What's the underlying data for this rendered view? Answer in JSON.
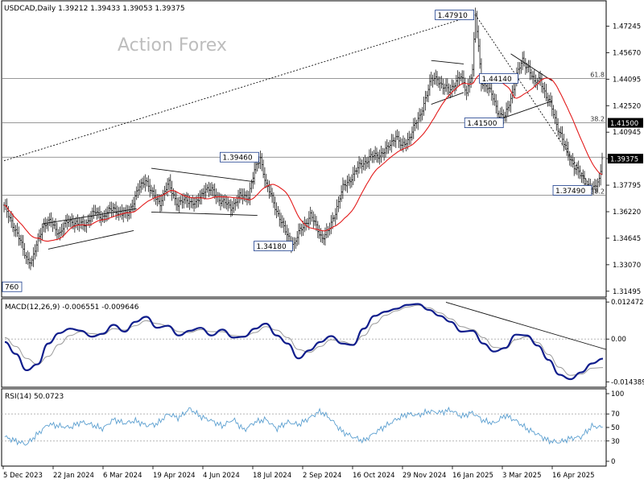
{
  "header": {
    "symbol_line": "USDCAD,Daily  1.39212 1.39433 1.39053 1.39375",
    "watermark": "Action Forex"
  },
  "colors": {
    "bars": "#1a1a1a",
    "sma": "#e31b1b",
    "macd": "#0f1d8c",
    "signal": "#9a9a9a",
    "rsi": "#5b9fd0",
    "grid": "#d0d0d0",
    "annotation": "#333333",
    "last_price_bg": "#000000"
  },
  "chart_data": [
    {
      "type": "ohlc",
      "panel": "price",
      "title": "USDCAD,Daily  1.39212 1.39433 1.39053 1.39375",
      "ylim": [
        1.3115,
        1.4875
      ],
      "y_ticks": [
        "1.47245",
        "1.45670",
        "1.44095",
        "1.42520",
        "1.40945",
        "1.39375",
        "1.37795",
        "1.36220",
        "1.34645",
        "1.33070",
        "1.31495"
      ],
      "x_ticks": [
        "5 Dec 2023",
        "22 Jan 2024",
        "6 Mar 2024",
        "19 Apr 2024",
        "4 Jun 2024",
        "18 Jul 2024",
        "2 Sep 2024",
        "16 Oct 2024",
        "29 Nov 2024",
        "16 Jan 2025",
        "3 Mar 2025",
        "16 Apr 2025"
      ],
      "last_price": "1.39375",
      "marked_level": "1.41500",
      "last_close": 1.39375,
      "moving_average_color": "#e31b1b",
      "anchors": [
        [
          0,
          1.365
        ],
        [
          5,
          1.357
        ],
        [
          12,
          1.342
        ],
        [
          16,
          1.334
        ],
        [
          19,
          1.332
        ],
        [
          22,
          1.342
        ],
        [
          26,
          1.354
        ],
        [
          32,
          1.356
        ],
        [
          38,
          1.349
        ],
        [
          44,
          1.358
        ],
        [
          50,
          1.354
        ],
        [
          56,
          1.356
        ],
        [
          62,
          1.362
        ],
        [
          68,
          1.359
        ],
        [
          74,
          1.365
        ],
        [
          80,
          1.36
        ],
        [
          84,
          1.362
        ],
        [
          88,
          1.368
        ],
        [
          92,
          1.377
        ],
        [
          96,
          1.382
        ],
        [
          100,
          1.373
        ],
        [
          106,
          1.368
        ],
        [
          112,
          1.379
        ],
        [
          118,
          1.366
        ],
        [
          124,
          1.37
        ],
        [
          130,
          1.366
        ],
        [
          136,
          1.376
        ],
        [
          142,
          1.374
        ],
        [
          148,
          1.368
        ],
        [
          154,
          1.365
        ],
        [
          160,
          1.371
        ],
        [
          166,
          1.372
        ],
        [
          170,
          1.386
        ],
        [
          174,
          1.3946
        ],
        [
          178,
          1.378
        ],
        [
          182,
          1.37
        ],
        [
          186,
          1.361
        ],
        [
          190,
          1.352
        ],
        [
          194,
          1.345
        ],
        [
          197,
          1.343
        ],
        [
          200,
          1.349
        ],
        [
          204,
          1.355
        ],
        [
          208,
          1.36
        ],
        [
          212,
          1.353
        ],
        [
          216,
          1.347
        ],
        [
          220,
          1.35
        ],
        [
          224,
          1.36
        ],
        [
          230,
          1.376
        ],
        [
          236,
          1.383
        ],
        [
          242,
          1.39
        ],
        [
          248,
          1.394
        ],
        [
          254,
          1.396
        ],
        [
          260,
          1.399
        ],
        [
          266,
          1.408
        ],
        [
          270,
          1.4
        ],
        [
          274,
          1.405
        ],
        [
          278,
          1.412
        ],
        [
          282,
          1.418
        ],
        [
          286,
          1.43
        ],
        [
          290,
          1.44
        ],
        [
          294,
          1.442
        ],
        [
          298,
          1.436
        ],
        [
          302,
          1.434
        ],
        [
          306,
          1.439
        ],
        [
          310,
          1.442
        ],
        [
          314,
          1.434
        ],
        [
          318,
          1.446
        ],
        [
          320,
          1.4791
        ],
        [
          324,
          1.44
        ],
        [
          328,
          1.436
        ],
        [
          332,
          1.43
        ],
        [
          336,
          1.42
        ],
        [
          340,
          1.418
        ],
        [
          344,
          1.43
        ],
        [
          348,
          1.443
        ],
        [
          352,
          1.452
        ],
        [
          356,
          1.448
        ],
        [
          360,
          1.438
        ],
        [
          364,
          1.442
        ],
        [
          368,
          1.43
        ],
        [
          372,
          1.424
        ],
        [
          376,
          1.412
        ],
        [
          380,
          1.402
        ],
        [
          384,
          1.395
        ],
        [
          388,
          1.387
        ],
        [
          392,
          1.383
        ],
        [
          396,
          1.378
        ],
        [
          400,
          1.3749
        ],
        [
          404,
          1.382
        ],
        [
          406,
          1.3937
        ]
      ],
      "annotations": [
        {
          "label": "1.47910",
          "value": 1.4791,
          "at_bar": 320
        },
        {
          "label": "1.44140",
          "value": 1.4414,
          "at_bar": 350
        },
        {
          "label": "1.41500",
          "value": 1.415,
          "at_bar": 340
        },
        {
          "label": "1.39460",
          "value": 1.3946,
          "at_bar": 174
        },
        {
          "label": "1.37490",
          "value": 1.3749,
          "at_bar": 400
        },
        {
          "label": "1.34180",
          "value": 1.3418,
          "at_bar": 197
        },
        {
          "label": "760",
          "value": 1.3176,
          "at_bar": 0
        }
      ],
      "fib_labels": [
        {
          "label": "61.8",
          "value": 1.4414
        },
        {
          "label": "38.2",
          "value": 1.415
        },
        {
          "label": "38.2",
          "value": 1.372
        }
      ],
      "horizontal_levels": [
        1.4414,
        1.415,
        1.3946,
        1.372
      ],
      "trendlines": [
        {
          "from": [
            0,
            1.3925
          ],
          "to": [
            320,
            1.4791
          ],
          "style": "dotted"
        },
        {
          "from": [
            320,
            1.4791
          ],
          "to": [
            400,
            1.3749
          ],
          "style": "dotted"
        },
        {
          "from": [
            26,
            1.355
          ],
          "to": [
            90,
            1.364
          ],
          "style": "solid"
        },
        {
          "from": [
            30,
            1.34
          ],
          "to": [
            88,
            1.351
          ],
          "style": "solid"
        },
        {
          "from": [
            100,
            1.388
          ],
          "to": [
            170,
            1.38
          ],
          "style": "solid"
        },
        {
          "from": [
            100,
            1.362
          ],
          "to": [
            172,
            1.36
          ],
          "style": "solid"
        },
        {
          "from": [
            290,
            1.452
          ],
          "to": [
            312,
            1.45
          ],
          "style": "solid"
        },
        {
          "from": [
            290,
            1.426
          ],
          "to": [
            312,
            1.433
          ],
          "style": "solid"
        },
        {
          "from": [
            344,
            1.456
          ],
          "to": [
            372,
            1.44
          ],
          "style": "solid"
        },
        {
          "from": [
            336,
            1.417
          ],
          "to": [
            372,
            1.428
          ],
          "style": "solid"
        }
      ]
    },
    {
      "type": "line",
      "panel": "macd",
      "title": "MACD(12,26,9) -0.006551 -0.009646",
      "ylim": [
        -0.0162,
        0.0136
      ],
      "y_ticks": [
        "0.012472",
        "0.00",
        "-0.014389"
      ],
      "series": [
        {
          "name": "MACD",
          "values": [
            -0.001,
            -0.005,
            -0.0105,
            -0.0085,
            -0.0015,
            0.002,
            0.0035,
            0.0028,
            0.0008,
            0.0018,
            0.0048,
            0.0025,
            0.0058,
            0.0075,
            0.0038,
            0.0045,
            0.0012,
            0.0028,
            0.0038,
            0.0012,
            0.0032,
            0.0005,
            0.0008,
            0.0035,
            0.0052,
            0.0012,
            -0.0015,
            -0.0065,
            -0.0038,
            -0.001,
            0.001,
            -0.0015,
            -0.002,
            0.0035,
            0.0078,
            0.0092,
            0.0102,
            0.0115,
            0.0118,
            0.0098,
            0.0078,
            0.0058,
            0.0025,
            0.0028,
            -0.0015,
            -0.0042,
            -0.003,
            0.0015,
            0.0012,
            -0.0022,
            -0.007,
            -0.012,
            -0.0135,
            -0.0112,
            -0.0082,
            -0.0066
          ]
        },
        {
          "name": "Signal",
          "values": [
            0.0005,
            -0.0025,
            -0.0065,
            -0.0085,
            -0.0058,
            -0.0018,
            0.0012,
            0.0025,
            0.0018,
            0.0015,
            0.0035,
            0.003,
            0.0045,
            0.0062,
            0.0052,
            0.0045,
            0.0025,
            0.0022,
            0.0032,
            0.0025,
            0.0025,
            0.0012,
            0.0008,
            0.0022,
            0.0042,
            0.003,
            0.0005,
            -0.0035,
            -0.0045,
            -0.0025,
            -0.0002,
            -0.0008,
            -0.0018,
            0.0012,
            0.0052,
            0.008,
            0.0095,
            0.0108,
            0.0114,
            0.0105,
            0.0088,
            0.0068,
            0.0042,
            0.0032,
            0.0005,
            -0.0028,
            -0.0032,
            -0.0002,
            0.0008,
            -0.0012,
            -0.0052,
            -0.0095,
            -0.0122,
            -0.0118,
            -0.0098,
            -0.0096
          ]
        }
      ],
      "trendline": {
        "from": [
          0.735,
          0.0124
        ],
        "to": [
          1.0,
          -0.0035
        ]
      }
    },
    {
      "type": "line",
      "panel": "rsi",
      "title": "RSI(14) 50.0723",
      "ylim": [
        0,
        100
      ],
      "y_ticks": [
        "100",
        "70",
        "50",
        "30",
        "0"
      ],
      "levels": [
        70,
        30
      ],
      "series": [
        {
          "name": "RSI",
          "values": [
            36,
            30,
            25,
            40,
            55,
            52,
            50,
            58,
            54,
            48,
            62,
            56,
            60,
            53,
            55,
            70,
            64,
            78,
            66,
            60,
            52,
            62,
            46,
            58,
            62,
            48,
            58,
            54,
            64,
            74,
            62,
            44,
            36,
            30,
            42,
            52,
            62,
            70,
            68,
            74,
            72,
            76,
            66,
            72,
            60,
            56,
            68,
            60,
            48,
            40,
            30,
            28,
            34,
            36,
            52,
            50
          ]
        }
      ]
    }
  ]
}
